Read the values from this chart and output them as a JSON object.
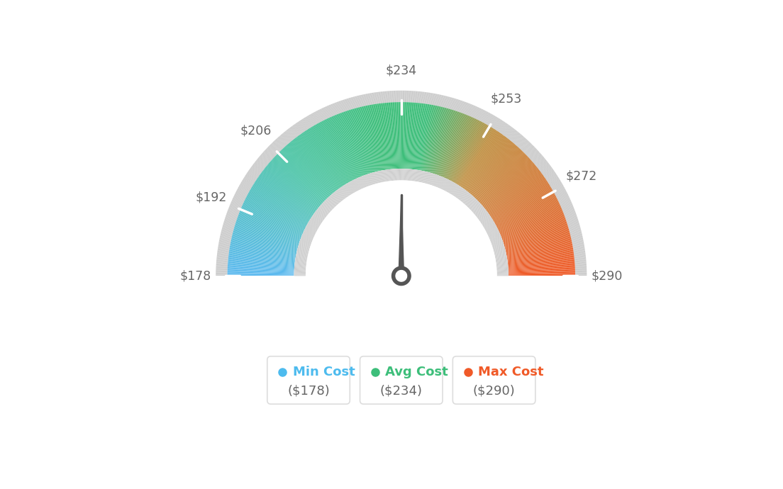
{
  "min_val": 178,
  "avg_val": 234,
  "max_val": 290,
  "tick_labels": [
    "$178",
    "$192",
    "$206",
    "$234",
    "$253",
    "$272",
    "$290"
  ],
  "tick_values": [
    178,
    192,
    206,
    234,
    253,
    272,
    290
  ],
  "needle_value": 234,
  "color_stops": [
    [
      0.0,
      [
        91,
        185,
        240
      ]
    ],
    [
      0.25,
      [
        72,
        195,
        165
      ]
    ],
    [
      0.45,
      [
        61,
        190,
        122
      ]
    ],
    [
      0.55,
      [
        61,
        190,
        122
      ]
    ],
    [
      0.68,
      [
        190,
        140,
        60
      ]
    ],
    [
      1.0,
      [
        240,
        90,
        40
      ]
    ]
  ],
  "legend_min_color": "#4DBBEE",
  "legend_avg_color": "#3DBE7A",
  "legend_max_color": "#F05A28",
  "background_color": "#ffffff",
  "needle_color": "#555555",
  "hub_color": "#555555"
}
